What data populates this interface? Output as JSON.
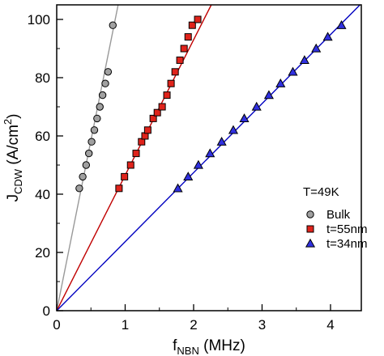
{
  "chart_data": {
    "type": "scatter",
    "xlabel_main": "f",
    "xlabel_sub": "NBN",
    "xlabel_unit": " (MHz)",
    "ylabel_main": "J",
    "ylabel_sub": "CDW",
    "ylabel_unit_pre": " (A/cm",
    "ylabel_unit_sup": "2",
    "ylabel_unit_post": ")",
    "xlim": [
      0,
      4.45
    ],
    "ylim": [
      0,
      105
    ],
    "x_ticks": [
      0,
      1,
      2,
      3,
      4
    ],
    "y_ticks": [
      0,
      20,
      40,
      60,
      80,
      100
    ],
    "annotation": "T=49K",
    "legend_position": "bottom-right",
    "series": [
      {
        "name": "Bulk",
        "marker": "circle",
        "color": "#a0a0a0",
        "line_color": "#999999",
        "fit_slope": 117,
        "x": [
          0.33,
          0.38,
          0.43,
          0.47,
          0.51,
          0.55,
          0.59,
          0.63,
          0.67,
          0.71,
          0.75,
          0.82
        ],
        "y": [
          42,
          46,
          50,
          54,
          58,
          62,
          66,
          70,
          74,
          78,
          82,
          98
        ]
      },
      {
        "name": "t=55nm",
        "marker": "square",
        "color": "#e0231b",
        "line_color": "#c00000",
        "fit_slope": 46.5,
        "x": [
          0.91,
          0.99,
          1.08,
          1.16,
          1.24,
          1.29,
          1.33,
          1.41,
          1.47,
          1.54,
          1.61,
          1.67,
          1.73,
          1.8,
          1.86,
          1.92,
          1.98,
          2.06
        ],
        "y": [
          42,
          46,
          50,
          54,
          58,
          60,
          62,
          66,
          68,
          70,
          74,
          78,
          82,
          86,
          90,
          94,
          98,
          100
        ]
      },
      {
        "name": "t=34nm",
        "marker": "triangle",
        "color": "#3030e0",
        "line_color": "#0000c0",
        "fit_slope": 23.7,
        "x": [
          1.77,
          1.92,
          2.07,
          2.24,
          2.41,
          2.58,
          2.74,
          2.92,
          3.1,
          3.27,
          3.45,
          3.62,
          3.79,
          3.96,
          4.16
        ],
        "y": [
          42,
          46,
          50,
          54,
          58,
          62,
          66,
          70,
          74,
          78,
          82,
          86,
          90,
          94,
          98
        ]
      }
    ]
  }
}
